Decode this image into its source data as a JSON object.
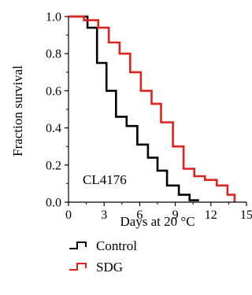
{
  "chart_data": {
    "type": "line",
    "step": true,
    "xlabel": "Days at 20 °C",
    "ylabel": "Fraction survival",
    "xlim": [
      0,
      15
    ],
    "ylim": [
      0,
      1.0
    ],
    "xticks": [
      0,
      3,
      6,
      9,
      12,
      15
    ],
    "xtick_labels": [
      "0",
      "3",
      "6",
      "9",
      "12",
      "15"
    ],
    "yticks": [
      0,
      0.2,
      0.4,
      0.6,
      0.8,
      1.0
    ],
    "ytick_labels": [
      "0.0",
      "0.2",
      "0.4",
      "0.6",
      "0.8",
      "1.0"
    ],
    "grid": false,
    "legend_position": "bottom",
    "annotation": "CL4176",
    "series": [
      {
        "name": "Control",
        "color": "#000000",
        "x": [
          0,
          1,
          1.6,
          2.4,
          3.2,
          4.0,
          4.9,
          5.8,
          6.7,
          7.5,
          8.3,
          9.3,
          10.2,
          11.0
        ],
        "y": [
          1.0,
          1.0,
          0.94,
          0.75,
          0.6,
          0.46,
          0.41,
          0.31,
          0.24,
          0.17,
          0.09,
          0.04,
          0.01,
          0.01
        ]
      },
      {
        "name": "SDG",
        "color": "#e0231f",
        "x": [
          0,
          1.3,
          2.5,
          3.4,
          4.3,
          5.2,
          6.1,
          7.0,
          7.8,
          8.8,
          9.7,
          10.6,
          11.5,
          12.5,
          13.4,
          14.0
        ],
        "y": [
          1.0,
          0.98,
          0.94,
          0.86,
          0.8,
          0.7,
          0.6,
          0.53,
          0.43,
          0.3,
          0.18,
          0.14,
          0.12,
          0.09,
          0.04,
          0.0
        ]
      }
    ]
  }
}
